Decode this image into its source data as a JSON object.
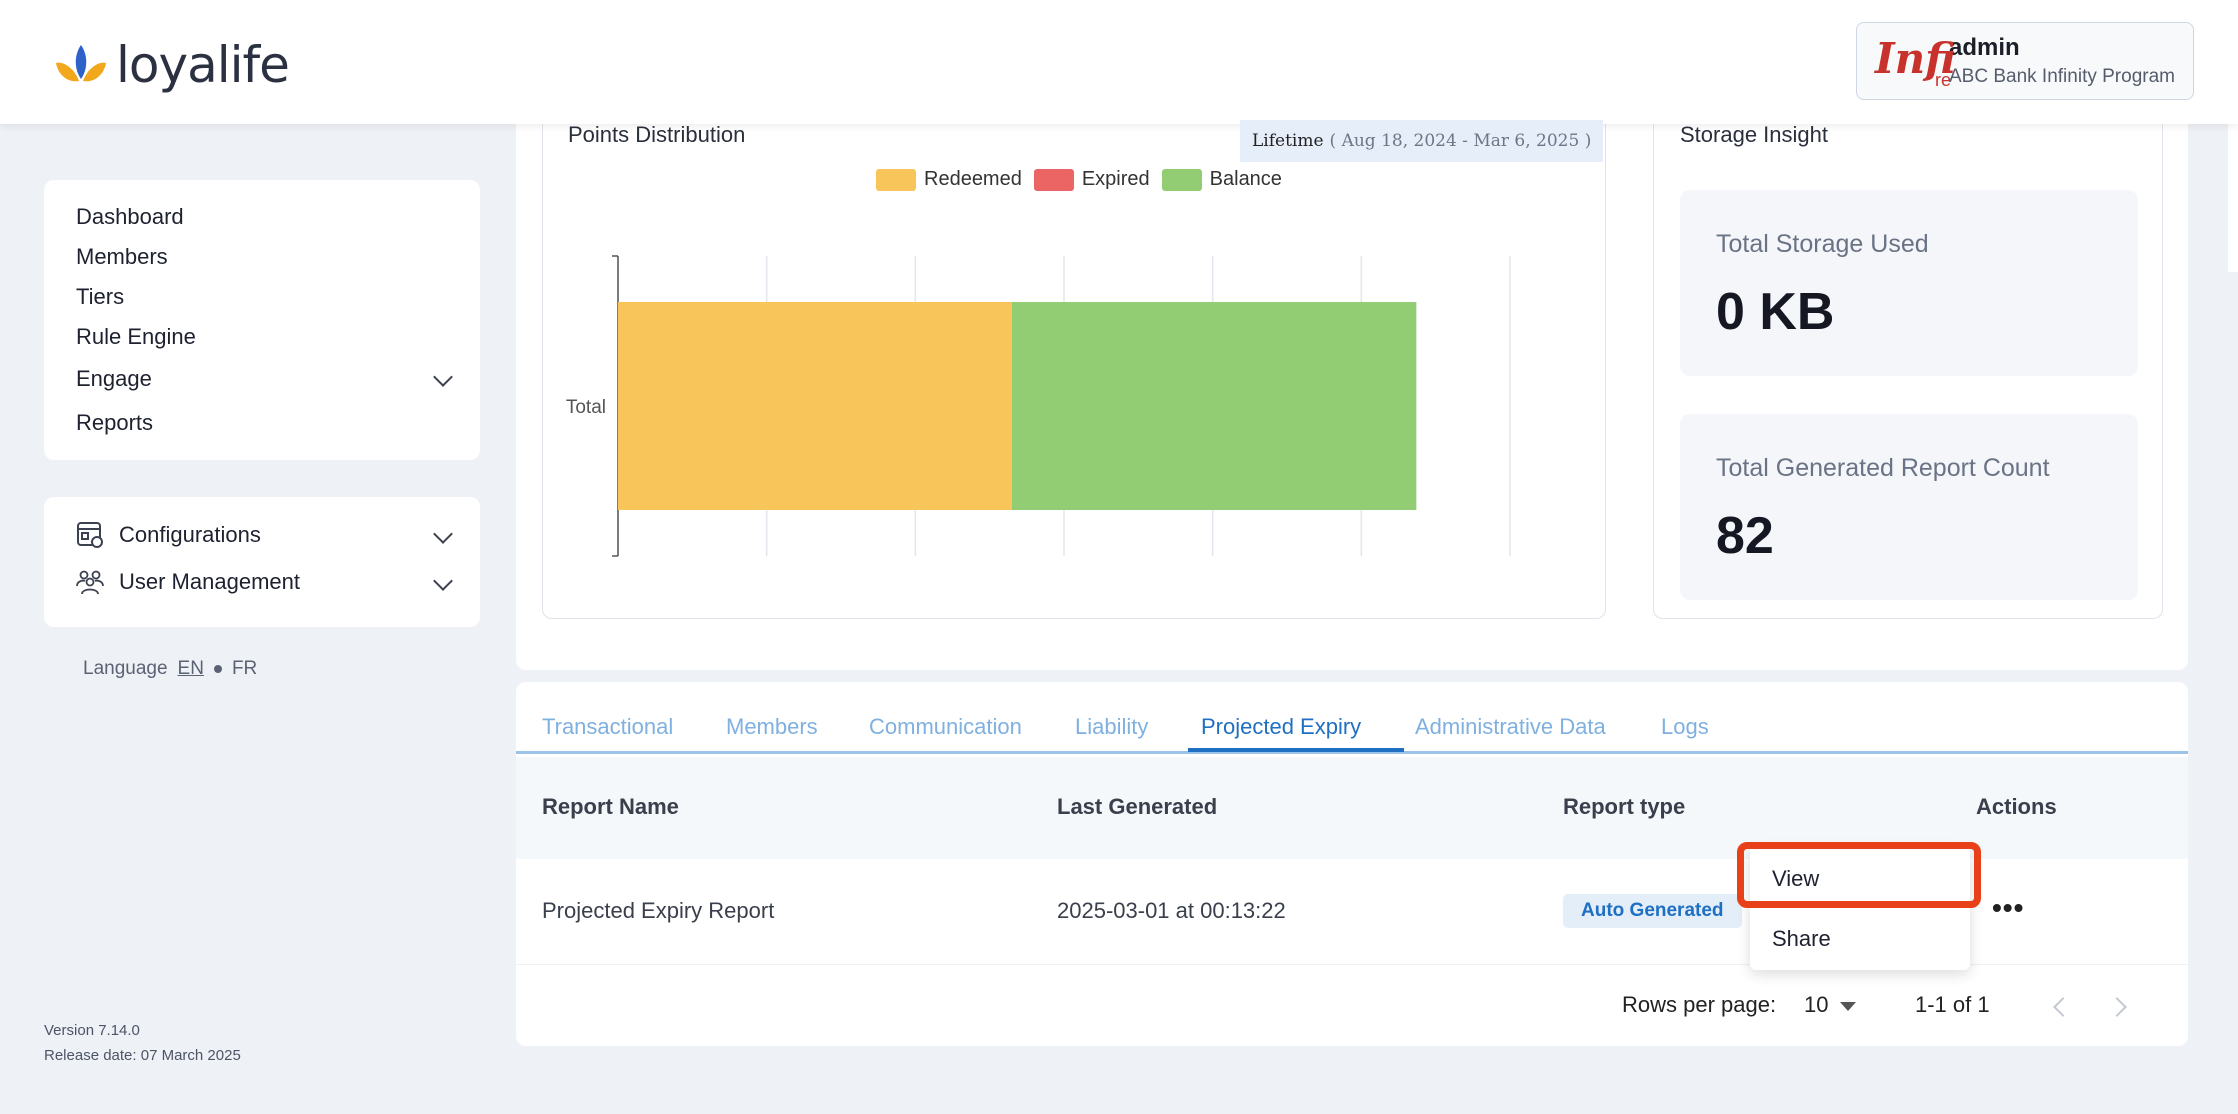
{
  "brand": {
    "name": "loyalife"
  },
  "user": {
    "name": "admin",
    "program": "ABC Bank Infinity Program",
    "avatar_main": "Infi",
    "avatar_sub": "re"
  },
  "sidebar": {
    "primary": [
      {
        "label": "Dashboard"
      },
      {
        "label": "Members"
      },
      {
        "label": "Tiers"
      },
      {
        "label": "Rule Engine"
      },
      {
        "label": "Engage"
      },
      {
        "label": "Reports"
      }
    ],
    "secondary": [
      {
        "label": "Configurations",
        "icon": "settings-icon"
      },
      {
        "label": "User Management",
        "icon": "users-icon"
      }
    ],
    "language": {
      "label": "Language",
      "options": [
        "EN",
        "FR"
      ],
      "selected": "EN"
    },
    "version": "Version 7.14.0",
    "release": "Release date: 07 March 2025"
  },
  "points_chart": {
    "title": "Points Distribution",
    "range_label": "Lifetime",
    "range_dates": "( Aug 18, 2024 - Mar 6, 2025 )"
  },
  "chart_data": {
    "type": "bar",
    "orientation": "horizontal",
    "stacked": true,
    "categories": [
      "Total"
    ],
    "series": [
      {
        "name": "Redeemed",
        "color": "#f8c55a",
        "values": [
          2.65
        ]
      },
      {
        "name": "Expired",
        "color": "#ec6565",
        "values": [
          0
        ]
      },
      {
        "name": "Balance",
        "color": "#92cc73",
        "values": [
          2.72
        ]
      }
    ],
    "xlim": [
      0,
      6
    ],
    "grid": true,
    "legend": "top",
    "tick_labels_hidden": true
  },
  "storage": {
    "title": "Storage Insight",
    "used_label": "Total Storage Used",
    "used_value": "0 KB",
    "count_label": "Total Generated Report Count",
    "count_value": "82"
  },
  "reports": {
    "tabs": [
      "Transactional",
      "Members",
      "Communication",
      "Liability",
      "Projected Expiry",
      "Administrative Data",
      "Logs"
    ],
    "active_tab": "Projected Expiry",
    "columns": [
      "Report Name",
      "Last Generated",
      "Report type",
      "Actions"
    ],
    "rows": [
      {
        "name": "Projected Expiry Report",
        "last_generated": "2025-03-01 at 00:13:22",
        "type": "Auto Generated",
        "actions": "•••"
      }
    ],
    "rows_per_page_label": "Rows per page:",
    "rows_per_page": "10",
    "range": "1-1 of 1"
  },
  "action_menu": {
    "items": [
      "View",
      "Share"
    ],
    "highlighted": "View"
  },
  "colors": {
    "accent": "#1f6fc2",
    "highlight": "#e8411a"
  }
}
